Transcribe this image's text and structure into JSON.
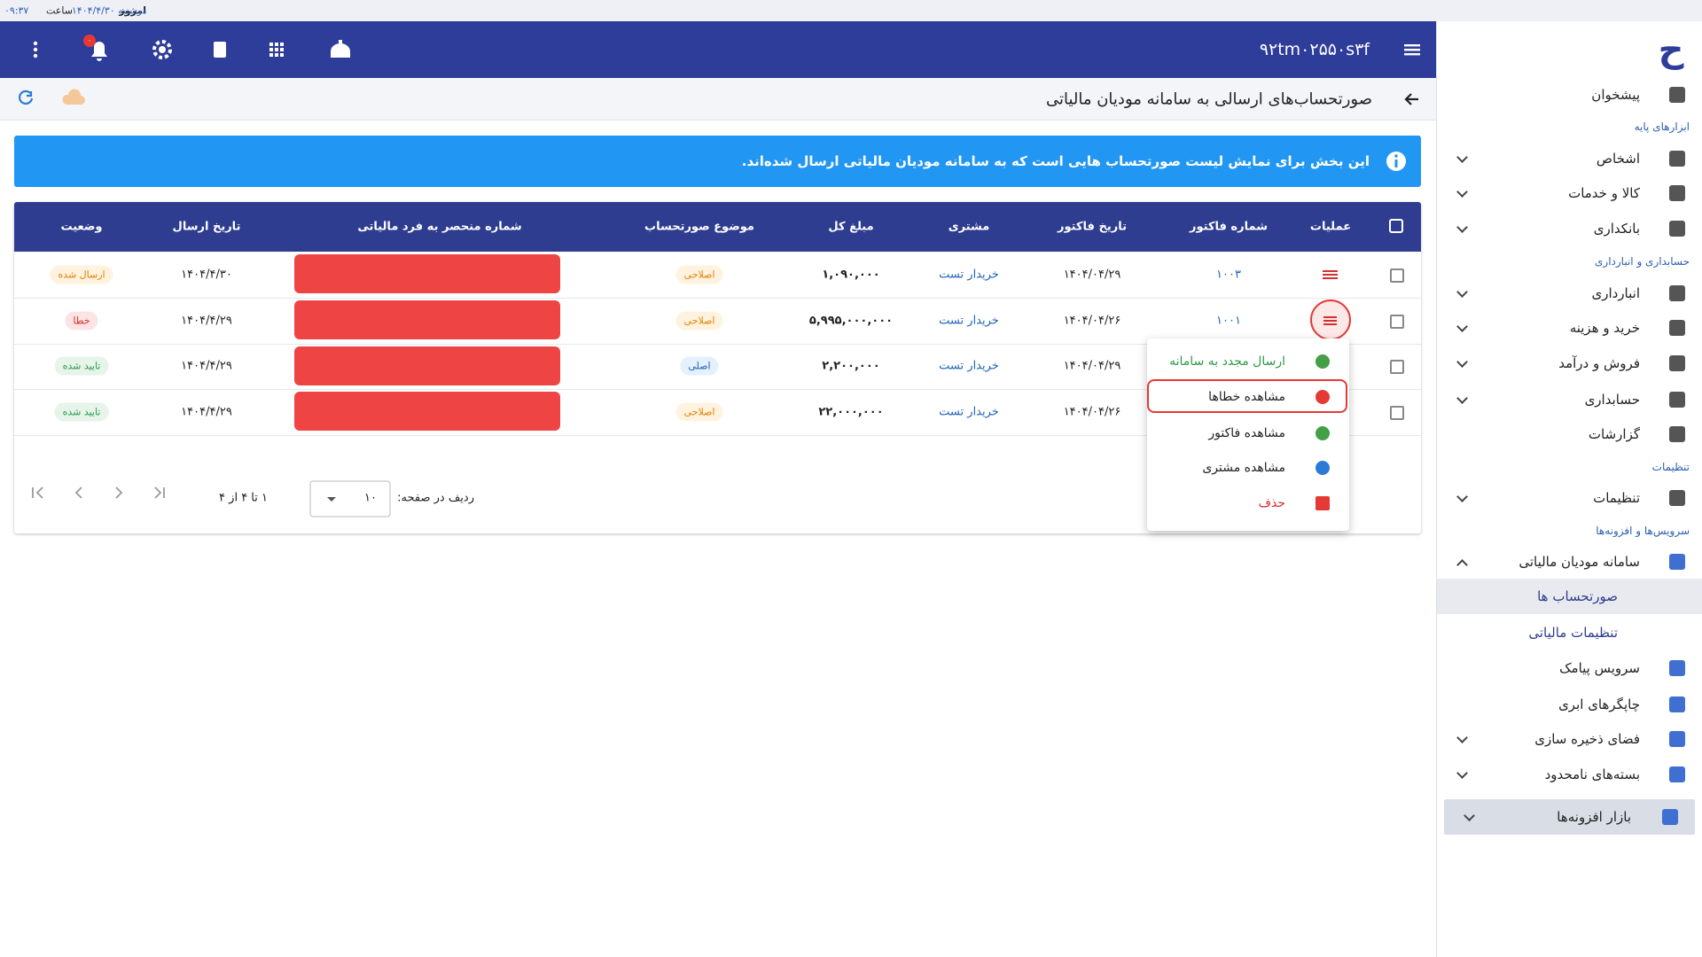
{
  "status_bar": {
    "today": "امروز",
    "date": "دوشنبه ۱۴۰۴/۴/۳۰",
    "time_label": "ساعت",
    "time": "۰۹:۳۷"
  },
  "header": {
    "code": "۹۲tm۰۲۵۵۰s۳f",
    "notification_badge": "۰"
  },
  "page": {
    "title": "صورتحساب‌های ارسالی به سامانه مودیان مالیاتی",
    "info": "این بخش برای نمایش لیست صورتحساب هایی است که به سامانه مودیان مالیاتی ارسال شده‌اند."
  },
  "table": {
    "columns": [
      "عملیات",
      "شماره فاکتور",
      "تاریخ فاکتور",
      "مشتری",
      "مبلغ کل",
      "موضوع صورتحساب",
      "شماره منحصر به فرد مالیاتی",
      "تاریخ ارسال",
      "وضعیت"
    ],
    "rows": [
      {
        "invoice_no": "۱۰۰۳",
        "invoice_date": "۱۴۰۴/۰۴/۲۹",
        "customer": "خریدار تست",
        "amount": "۱,۰۹۰,۰۰۰",
        "subject": "اصلاحی",
        "subject_tone": "orange",
        "send_date": "۱۴۰۴/۴/۳۰",
        "status": "ارسال شده",
        "status_tone": "orange"
      },
      {
        "invoice_no": "۱۰۰۱",
        "invoice_date": "۱۴۰۴/۰۴/۲۶",
        "customer": "خریدار تست",
        "amount": "۵,۹۹۵,۰۰۰,۰۰۰",
        "subject": "اصلاحی",
        "subject_tone": "orange",
        "send_date": "۱۴۰۴/۴/۲۹",
        "status": "خطا",
        "status_tone": "red"
      },
      {
        "invoice_date": "۱۴۰۴/۰۴/۲۹",
        "customer": "خریدار تست",
        "amount": "۲,۲۰۰,۰۰۰",
        "subject": "اصلی",
        "subject_tone": "blue",
        "send_date": "۱۴۰۴/۴/۲۹",
        "status": "تایید شده",
        "status_tone": "green"
      },
      {
        "invoice_date": "۱۴۰۴/۰۴/۲۶",
        "customer": "خریدار تست",
        "amount": "۲۲,۰۰۰,۰۰۰",
        "subject": "اصلاحی",
        "subject_tone": "orange",
        "send_date": "۱۴۰۴/۴/۲۹",
        "status": "تایید شده",
        "status_tone": "green"
      }
    ]
  },
  "row_menu": {
    "items": [
      {
        "label": "ارسال مجدد به سامانه",
        "tone": "green"
      },
      {
        "label": "مشاهده خطاها",
        "tone": "dark",
        "highlighted": true
      },
      {
        "label": "مشاهده فاکتور",
        "tone": "dark"
      },
      {
        "label": "مشاهده مشتری",
        "tone": "dark"
      },
      {
        "label": "حذف",
        "tone": "red"
      }
    ]
  },
  "pagination": {
    "rows_per_page_label": "ردیف در صفحه:",
    "rows_per_page": "۱۰",
    "range": "۱ تا ۴ از ۴"
  },
  "sidebar": {
    "logo": "ح",
    "items": [
      {
        "label": "پیشخوان"
      },
      {
        "section": "ابزارهای پایه"
      },
      {
        "label": "اشخاص",
        "expand": "down"
      },
      {
        "label": "کالا و خدمات",
        "expand": "down"
      },
      {
        "label": "بانکداری",
        "expand": "down"
      },
      {
        "section": "حسابداری و انبارداری"
      },
      {
        "label": "انبارداری",
        "expand": "down"
      },
      {
        "label": "خرید و هزینه",
        "expand": "down"
      },
      {
        "label": "فروش و درآمد",
        "expand": "down"
      },
      {
        "label": "حسابداری",
        "expand": "down"
      },
      {
        "label": "گزارشات"
      },
      {
        "section": "تنظیمات"
      },
      {
        "label": "تنظیمات",
        "expand": "down"
      },
      {
        "section": "سرویس‌ها و افزونه‌ها"
      },
      {
        "label": "سامانه مودیان مالیاتی",
        "expand": "up"
      },
      {
        "label": "صورتحساب ها",
        "sub": true,
        "active": true
      },
      {
        "label": "تنظیمات مالیاتی",
        "sub": true
      },
      {
        "label": "سرویس پیامک"
      },
      {
        "label": "چاپگرهای ابری"
      },
      {
        "label": "فضای ذخیره سازی",
        "expand": "down"
      },
      {
        "label": "بسته‌های نامحدود",
        "expand": "down"
      },
      {
        "label": "بازار افزونه‌ها",
        "expand": "down",
        "featured": true
      }
    ]
  }
}
